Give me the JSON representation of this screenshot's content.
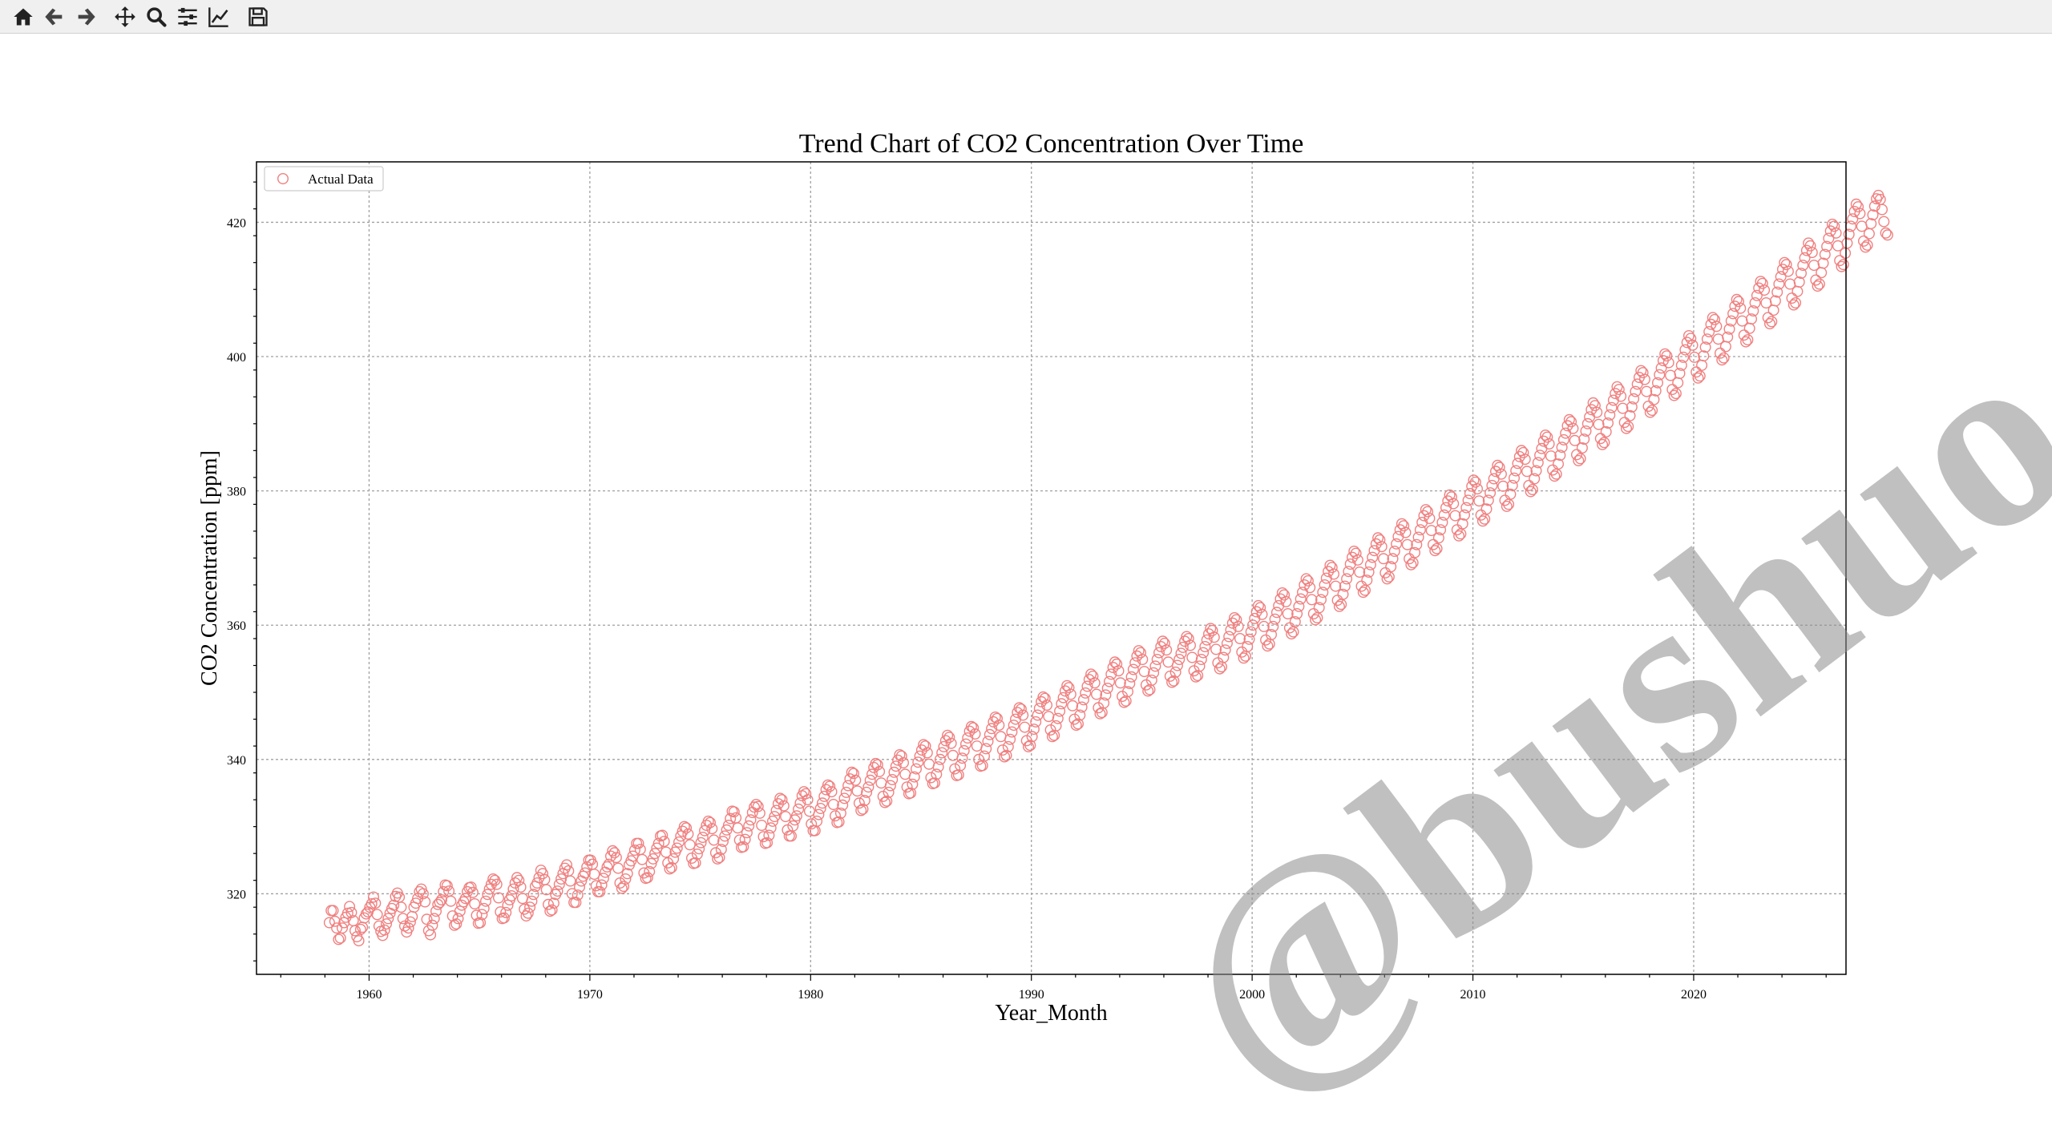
{
  "toolbar": {
    "buttons": [
      {
        "name": "home-icon"
      },
      {
        "name": "back-icon"
      },
      {
        "name": "forward-icon"
      },
      {
        "name": "pan-icon"
      },
      {
        "name": "zoom-icon"
      },
      {
        "name": "configure-subplots-icon"
      },
      {
        "name": "edit-axis-icon"
      },
      {
        "name": "save-icon"
      }
    ]
  },
  "watermark": "@bushuo",
  "chart_data": {
    "type": "scatter",
    "title": "Trend Chart of CO2 Concentration Over Time",
    "xlabel": "Year_Month",
    "ylabel": "CO2 Concentration [ppm]",
    "xlim": [
      1954.9,
      2026.9
    ],
    "ylim": [
      308.0,
      429.0
    ],
    "xticks": [
      1960,
      1970,
      1980,
      1990,
      2000,
      2010,
      2020
    ],
    "yticks": [
      320,
      340,
      360,
      380,
      400,
      420
    ],
    "grid": true,
    "legend": {
      "position": "upper-left"
    },
    "marker_color": "#f08080",
    "marker": "open-circle",
    "series": [
      {
        "name": "Actual Data",
        "x_start": 1958.2,
        "x_step": 0.083333,
        "values": [
          315.7,
          317.5,
          317.5,
          315.9,
          314.9,
          313.2,
          313.4,
          314.9,
          315.7,
          316.5,
          317.1,
          318.1,
          317.2,
          316.0,
          314.5,
          313.6,
          313.0,
          314.7,
          315.0,
          316.4,
          317.0,
          317.3,
          318.0,
          318.5,
          319.5,
          318.6,
          316.9,
          315.2,
          314.4,
          313.8,
          314.6,
          315.5,
          316.3,
          317.1,
          317.8,
          318.3,
          319.6,
          320.1,
          319.5,
          318.0,
          316.3,
          315.2,
          314.3,
          314.9,
          315.8,
          316.6,
          318.0,
          318.6,
          319.3,
          320.3,
          320.7,
          320.0,
          318.8,
          316.2,
          314.5,
          313.9,
          315.3,
          316.3,
          317.4,
          318.4,
          318.7,
          319.1,
          320.3,
          321.3,
          321.2,
          320.4,
          318.9,
          316.7,
          315.3,
          315.5,
          316.3,
          317.4,
          318.3,
          318.8,
          319.3,
          320.3,
          320.9,
          321.0,
          320.2,
          318.5,
          316.8,
          315.6,
          315.7,
          316.9,
          317.8,
          318.9,
          319.9,
          320.7,
          321.4,
          322.2,
          322.0,
          321.4,
          319.4,
          317.3,
          316.3,
          316.4,
          317.2,
          318.3,
          319.1,
          319.7,
          320.7,
          321.6,
          322.4,
          322.0,
          321.0,
          319.3,
          317.7,
          316.7,
          317.1,
          318.0,
          318.9,
          319.9,
          321.1,
          321.6,
          322.4,
          323.5,
          323.0,
          322.1,
          320.6,
          318.4,
          317.4,
          317.6,
          318.6,
          319.9,
          320.4,
          321.4,
          322.2,
          323.0,
          323.8,
          324.3,
          323.4,
          321.9,
          320.0,
          318.7,
          318.7,
          319.8,
          321.0,
          321.9,
          322.6,
          323.1,
          324.0,
          325.0,
          325.0,
          324.4,
          322.9,
          321.2,
          320.3,
          320.3,
          321.3,
          322.3,
          323.2,
          324.0,
          324.4,
          325.6,
          326.4,
          326.1,
          325.4,
          323.8,
          321.6,
          320.8,
          321.1,
          322.2,
          323.0,
          324.3,
          324.9,
          325.6,
          326.5,
          327.5,
          327.5,
          326.6,
          325.1,
          323.1,
          322.3,
          322.4,
          323.3,
          324.5,
          325.2,
          326.0,
          326.8,
          327.5,
          328.6,
          328.7,
          327.8,
          326.2,
          324.6,
          323.7,
          323.9,
          325.2,
          326.2,
          326.8,
          327.7,
          328.6,
          329.3,
          330.0,
          329.8,
          328.9,
          327.3,
          325.3,
          324.5,
          324.6,
          325.9,
          326.7,
          327.6,
          328.4,
          329.4,
          330.2,
          330.8,
          330.6,
          329.7,
          328.0,
          326.1,
          325.2,
          325.4,
          326.6,
          327.8,
          328.6,
          329.5,
          330.2,
          331.2,
          332.3,
          332.2,
          331.3,
          329.8,
          328.0,
          326.9,
          327.0,
          328.1,
          329.1,
          330.1,
          331.0,
          332.1,
          332.9,
          333.3,
          333.0,
          332.0,
          330.2,
          328.5,
          327.5,
          327.6,
          328.7,
          329.8,
          330.8,
          331.5,
          332.4,
          333.4,
          334.2,
          334.0,
          333.1,
          331.5,
          329.5,
          328.6,
          328.6,
          330.1,
          331.0,
          331.6,
          332.6,
          333.5,
          334.6,
          335.2,
          334.9,
          334.0,
          332.3,
          330.4,
          329.4,
          329.4,
          330.8,
          331.8,
          332.7,
          333.5,
          334.5,
          335.5,
          336.2,
          336.0,
          335.2,
          333.3,
          331.6,
          330.6,
          330.7,
          332.0,
          333.2,
          334.2,
          335.1,
          336.1,
          337.1,
          338.1,
          337.9,
          336.9,
          335.3,
          333.5,
          332.4,
          332.6,
          333.9,
          335.1,
          335.9,
          336.9,
          337.8,
          338.8,
          339.4,
          339.2,
          338.2,
          336.5,
          334.5,
          333.6,
          333.8,
          335.1,
          336.1,
          337.0,
          338.1,
          339.0,
          339.9,
          340.7,
          340.5,
          339.5,
          337.8,
          335.9,
          334.9,
          335.0,
          336.3,
          337.4,
          338.6,
          339.6,
          340.5,
          341.4,
          342.2,
          342.0,
          341.0,
          339.3,
          337.3,
          336.4,
          336.5,
          337.8,
          338.9,
          340.0,
          341.0,
          341.9,
          342.8,
          343.6,
          343.3,
          342.4,
          340.6,
          338.6,
          337.6,
          337.7,
          339.1,
          340.2,
          341.3,
          342.3,
          343.2,
          344.2,
          344.9,
          344.7,
          343.8,
          342.0,
          340.0,
          339.0,
          339.1,
          340.5,
          341.6,
          342.7,
          343.7,
          344.6,
          345.6,
          346.3,
          346.1,
          345.1,
          343.4,
          341.4,
          340.4,
          340.6,
          341.9,
          343.0,
          344.1,
          345.1,
          346.0,
          347.0,
          347.7,
          347.5,
          346.6,
          344.8,
          342.8,
          341.9,
          342.1,
          343.4,
          344.5,
          345.6,
          346.6,
          347.6,
          348.6,
          349.3,
          349.1,
          348.1,
          346.4,
          344.4,
          343.4,
          343.6,
          345.0,
          346.1,
          347.2,
          348.3,
          349.2,
          350.2,
          351.0,
          350.7,
          349.7,
          348.0,
          346.0,
          345.1,
          345.3,
          346.6,
          347.8,
          348.9,
          349.9,
          350.9,
          351.9,
          352.7,
          352.4,
          351.4,
          349.7,
          347.7,
          346.8,
          347.0,
          348.4,
          349.6,
          350.6,
          351.6,
          352.7,
          353.7,
          354.5,
          354.2,
          353.2,
          351.4,
          349.4,
          348.5,
          348.7,
          350.1,
          351.3,
          352.3,
          353.4,
          354.4,
          355.4,
          356.2,
          355.9,
          354.9,
          353.1,
          351.1,
          350.2,
          350.4,
          351.8,
          352.9,
          353.9,
          354.9,
          355.9,
          356.8,
          357.6,
          357.3,
          356.3,
          354.5,
          352.4,
          351.5,
          351.7,
          353.0,
          354.0,
          354.9,
          355.8,
          356.7,
          357.6,
          358.3,
          358.0,
          357.0,
          355.2,
          353.2,
          352.3,
          352.5,
          353.9,
          354.9,
          355.9,
          356.8,
          357.8,
          358.7,
          359.5,
          359.2,
          358.2,
          356.4,
          354.4,
          353.5,
          353.8,
          355.2,
          356.3,
          357.3,
          358.3,
          359.3,
          360.3,
          361.1,
          360.8,
          359.8,
          358.0,
          356.0,
          355.1,
          355.4,
          356.8,
          357.9,
          359.0,
          360.0,
          361.0,
          362.0,
          362.9,
          362.6,
          361.6,
          359.8,
          357.8,
          356.9,
          357.2,
          358.6,
          359.8,
          360.9,
          361.9,
          362.9,
          363.9,
          364.8,
          364.5,
          363.5,
          361.7,
          359.6,
          358.7,
          359.0,
          360.5,
          361.7,
          362.8,
          363.9,
          364.9,
          366.0,
          366.9,
          366.6,
          365.6,
          363.8,
          361.7,
          360.8,
          361.1,
          362.6,
          363.8,
          364.9,
          366.0,
          367.0,
          368.0,
          368.9,
          368.6,
          367.6,
          365.8,
          363.7,
          362.8,
          363.1,
          364.6,
          365.8,
          366.9,
          368.0,
          369.1,
          370.1,
          371.0,
          370.7,
          369.7,
          367.9,
          365.8,
          364.9,
          365.2,
          366.7,
          367.9,
          369.0,
          370.1,
          371.1,
          372.1,
          373.0,
          372.7,
          371.7,
          369.9,
          367.8,
          366.9,
          367.2,
          368.7,
          369.9,
          371.0,
          372.1,
          373.2,
          374.2,
          375.1,
          374.8,
          373.8,
          372.0,
          369.9,
          369.0,
          369.3,
          370.8,
          372.0,
          373.1,
          374.2,
          375.3,
          376.3,
          377.2,
          376.9,
          375.9,
          374.1,
          372.0,
          371.1,
          371.4,
          373.0,
          374.2,
          375.3,
          376.4,
          377.5,
          378.5,
          379.4,
          379.1,
          378.1,
          376.3,
          374.2,
          373.3,
          373.6,
          375.1,
          376.4,
          377.5,
          378.6,
          379.6,
          380.7,
          381.6,
          381.3,
          380.3,
          378.5,
          376.4,
          375.5,
          375.8,
          377.3,
          378.6,
          379.7,
          380.8,
          381.8,
          382.9,
          383.8,
          383.5,
          382.5,
          380.7,
          378.6,
          377.7,
          378.0,
          379.5,
          380.8,
          381.9,
          383.0,
          384.1,
          385.1,
          386.0,
          385.7,
          384.7,
          382.9,
          380.8,
          379.9,
          380.2,
          381.8,
          383.0,
          384.2,
          385.3,
          386.3,
          387.4,
          388.3,
          388.0,
          387.0,
          385.2,
          383.1,
          382.2,
          382.5,
          384.0,
          385.3,
          386.5,
          387.6,
          388.6,
          389.7,
          390.6,
          390.3,
          389.3,
          387.5,
          385.4,
          384.5,
          384.8,
          386.4,
          387.7,
          388.9,
          390.0,
          391.0,
          392.1,
          393.1,
          392.7,
          391.7,
          389.9,
          387.8,
          386.9,
          387.2,
          388.8,
          390.1,
          391.3,
          392.4,
          393.5,
          394.5,
          395.5,
          395.1,
          394.1,
          392.3,
          390.2,
          389.3,
          389.6,
          391.2,
          392.5,
          393.7,
          394.8,
          395.9,
          396.9,
          397.9,
          397.6,
          396.6,
          394.8,
          392.6,
          391.7,
          392.0,
          393.6,
          394.9,
          396.1,
          397.3,
          398.3,
          399.4,
          400.4,
          400.1,
          399.1,
          397.2,
          395.1,
          394.2,
          394.5,
          396.1,
          397.5,
          398.7,
          399.9,
          401.0,
          402.1,
          403.1,
          402.7,
          401.7,
          399.9,
          397.7,
          396.8,
          397.1,
          398.7,
          400.1,
          401.4,
          402.6,
          403.7,
          404.8,
          405.8,
          405.5,
          404.5,
          402.6,
          400.5,
          399.5,
          399.8,
          401.5,
          402.9,
          404.1,
          405.3,
          406.4,
          407.5,
          408.5,
          408.2,
          407.2,
          405.3,
          403.2,
          402.2,
          402.5,
          404.2,
          405.6,
          406.8,
          408.0,
          409.1,
          410.2,
          411.2,
          410.9,
          409.9,
          408.0,
          405.8,
          404.9,
          405.2,
          406.9,
          408.3,
          409.6,
          410.8,
          411.9,
          413.0,
          414.0,
          413.7,
          412.7,
          410.8,
          408.7,
          407.7,
          408.0,
          409.7,
          411.1,
          412.4,
          413.6,
          414.7,
          415.8,
          416.9,
          416.5,
          415.5,
          413.6,
          411.4,
          410.5,
          410.8,
          412.5,
          413.9,
          415.2,
          416.4,
          417.6,
          418.7,
          419.7,
          419.4,
          418.4,
          416.5,
          414.3,
          413.4,
          413.7,
          415.4,
          416.9,
          418.2,
          419.4,
          420.5,
          421.6,
          422.7,
          422.3,
          421.3,
          419.4,
          417.2,
          416.3,
          416.6,
          418.3,
          419.8,
          421.1,
          422.4,
          423.5,
          424.0,
          423.4,
          421.9,
          420.1,
          418.4,
          418.1
        ]
      }
    ]
  }
}
